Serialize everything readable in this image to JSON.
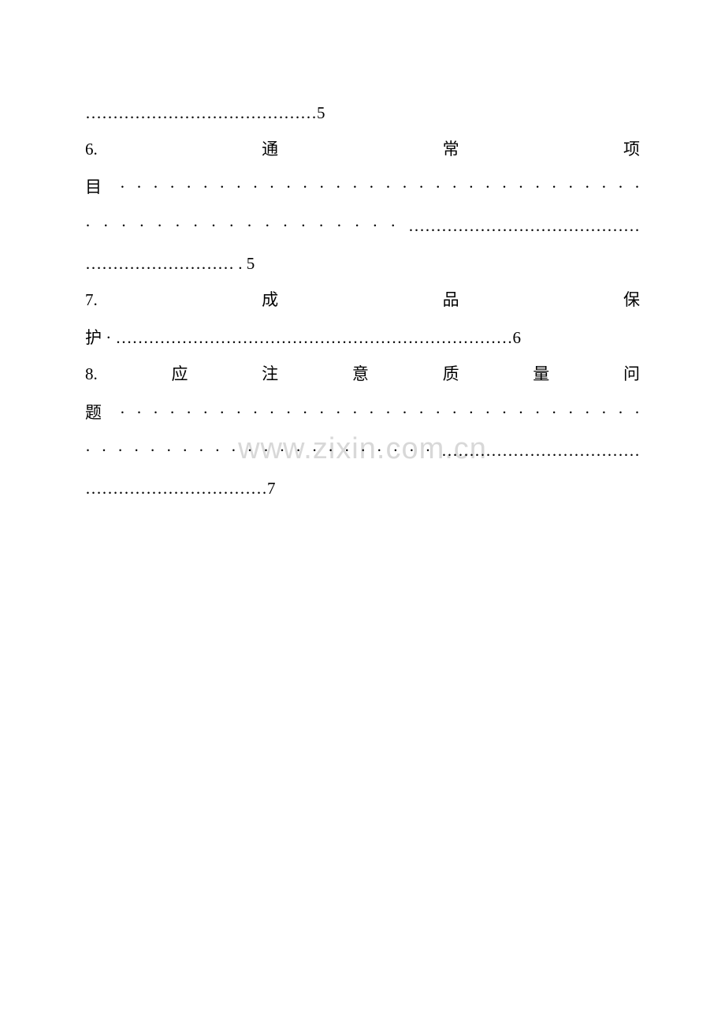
{
  "page": {
    "background_color": "#ffffff",
    "text_color": "#000000",
    "font_family": "SimSun",
    "font_size": 21,
    "line_height": 2.2,
    "watermark_color": "#d8d8d8",
    "watermark_fontsize": 38
  },
  "watermark": "www.zixin.com.cn",
  "toc": {
    "entries": [
      {
        "number": "",
        "title": "",
        "line1": "……………………………………5",
        "page": "5"
      },
      {
        "number": "6.",
        "title": "通常项目",
        "line1": "6.　　　　　　通　　　　　　常　　　　　　项",
        "line2": "目 · · · · · · · · · · · · · · · · · · · · · · · · · · · · · · · ·",
        "line3": "· · · · · · · · · · · · · · · · · · ……………………………………",
        "line4": "……………………… . 5",
        "page": "5"
      },
      {
        "number": "7.",
        "title": "成品保护",
        "line1": "7.　　　　　　成　　　　　　品　　　　　　保",
        "line2": "护 · ………………………………………………………………6",
        "page": "6"
      },
      {
        "number": "8.",
        "title": "应注意质量问题",
        "line1": "8.　　　应　　　注　　　意　　　质　　　量　　　问",
        "line2": "题 · · · · · · · · · · · · · · · · · · · · · · · · · · · · · · · ·",
        "line3": "· · · · · · · · · · · · · · · · · · · · · · ………………………………",
        "line4": "……………………………7",
        "page": "7"
      }
    ]
  }
}
